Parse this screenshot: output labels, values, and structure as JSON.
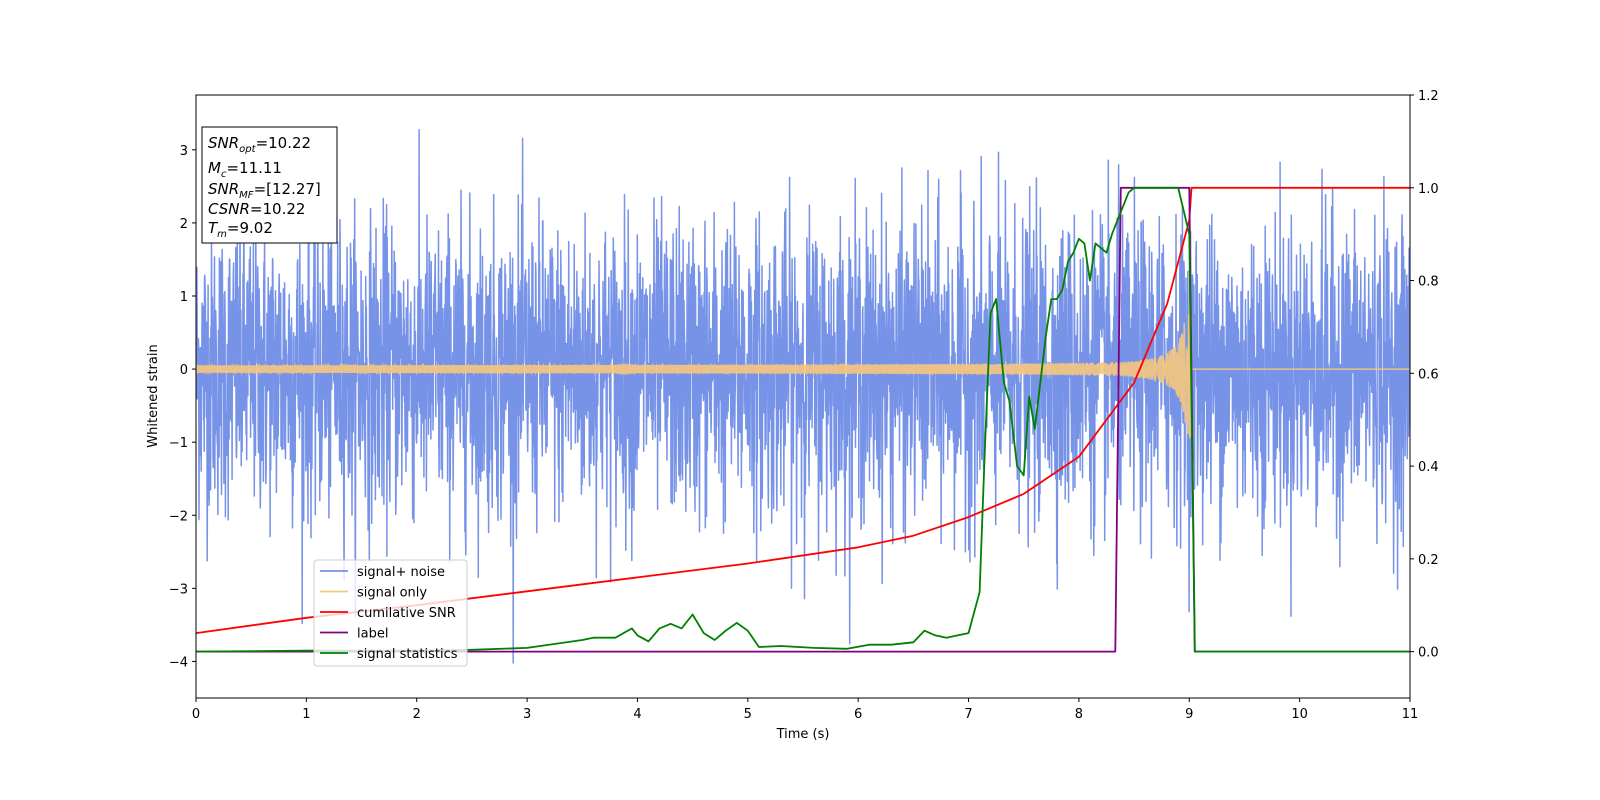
{
  "chart_data": {
    "type": "line",
    "xlabel": "Time (s)",
    "ylabel": "Whitened strain",
    "xlim": [
      0,
      11
    ],
    "ylim_left": [
      -4.5,
      3.75
    ],
    "ylim_right": [
      -0.1,
      1.2
    ],
    "x_ticks": [
      "0",
      "1",
      "2",
      "3",
      "4",
      "5",
      "6",
      "7",
      "8",
      "9",
      "10",
      "11"
    ],
    "y_ticks_left": [
      "3",
      "2",
      "1",
      "0",
      "−1",
      "−2",
      "−3",
      "−4"
    ],
    "y_ticks_right": [
      "1.2",
      "1.0",
      "0.8",
      "0.6",
      "0.4",
      "0.2",
      "0.0"
    ],
    "legend_position": "lower-left",
    "info_box": {
      "position": "top-left",
      "lines": [
        {
          "main": "SNR",
          "sub": "opt",
          "value": "=10.22"
        },
        {
          "main": "M",
          "sub": "c",
          "value": "=11.11"
        },
        {
          "main": "SNR",
          "sub": "MF",
          "value": "=[12.27]"
        },
        {
          "main": "CSNR",
          "sub": "",
          "value": "=10.22"
        },
        {
          "main": "T",
          "sub": "m",
          "value": "=9.02"
        }
      ]
    },
    "series": [
      {
        "name": "signal+ noise",
        "color": "#7793e8",
        "axis": "left",
        "kind": "noise",
        "std": 1.0,
        "range": [
          -4.1,
          3.5
        ],
        "x_range": [
          0,
          11
        ]
      },
      {
        "name": "signal only",
        "color": "#f5c77e",
        "axis": "left",
        "kind": "chirp",
        "merger_time": 9.02,
        "amplitude_start": 0.05,
        "amplitude_peak": 0.95
      },
      {
        "name": "cumilative SNR",
        "color": "#ff0000",
        "axis": "right",
        "x": [
          0,
          1,
          2,
          3,
          4,
          5,
          6,
          6.5,
          7,
          7.5,
          8,
          8.5,
          8.8,
          9.0,
          9.02,
          11
        ],
        "y": [
          0.04,
          0.073,
          0.1,
          0.13,
          0.16,
          0.19,
          0.225,
          0.25,
          0.29,
          0.34,
          0.42,
          0.58,
          0.75,
          0.93,
          1.0,
          1.0
        ]
      },
      {
        "name": "label",
        "color": "#800080",
        "axis": "right",
        "x": [
          0,
          8.33,
          8.38,
          9.0,
          9.05,
          11
        ],
        "y": [
          0.0,
          0.0,
          1.0,
          1.0,
          0.0,
          0.0
        ]
      },
      {
        "name": "signal statistics",
        "color": "#008000",
        "axis": "right",
        "x": [
          0,
          1,
          2,
          2.5,
          3,
          3.5,
          3.6,
          3.8,
          3.95,
          4.0,
          4.1,
          4.2,
          4.3,
          4.4,
          4.5,
          4.6,
          4.7,
          4.8,
          4.9,
          5.0,
          5.1,
          5.3,
          5.6,
          5.9,
          6.1,
          6.3,
          6.5,
          6.6,
          6.7,
          6.8,
          6.9,
          7.0,
          7.1,
          7.15,
          7.2,
          7.25,
          7.32,
          7.37,
          7.44,
          7.5,
          7.55,
          7.6,
          7.65,
          7.7,
          7.75,
          7.8,
          7.85,
          7.9,
          7.95,
          8.0,
          8.05,
          8.1,
          8.15,
          8.2,
          8.25,
          8.3,
          8.35,
          8.4,
          8.45,
          8.5,
          8.6,
          8.7,
          8.8,
          8.9,
          9.0,
          9.05,
          9.1,
          9.2,
          11
        ],
        "y": [
          0.0,
          0.002,
          0.002,
          0.004,
          0.008,
          0.025,
          0.03,
          0.03,
          0.05,
          0.035,
          0.022,
          0.05,
          0.06,
          0.05,
          0.08,
          0.04,
          0.025,
          0.045,
          0.062,
          0.045,
          0.01,
          0.012,
          0.008,
          0.006,
          0.015,
          0.015,
          0.02,
          0.045,
          0.035,
          0.03,
          0.035,
          0.04,
          0.128,
          0.45,
          0.73,
          0.76,
          0.58,
          0.54,
          0.4,
          0.38,
          0.55,
          0.48,
          0.58,
          0.68,
          0.76,
          0.76,
          0.78,
          0.84,
          0.86,
          0.89,
          0.88,
          0.8,
          0.88,
          0.87,
          0.86,
          0.9,
          0.93,
          0.96,
          0.99,
          1.0,
          1.0,
          1.0,
          1.0,
          1.0,
          0.9,
          0.0,
          0.0,
          0.0,
          0.0
        ]
      }
    ]
  }
}
